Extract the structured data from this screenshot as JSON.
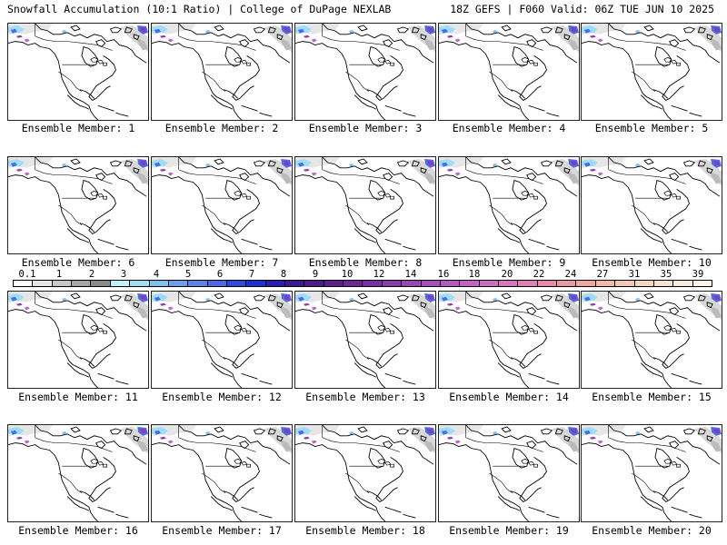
{
  "header": {
    "left_title": "Snowfall Accumulation (10:1 Ratio) | College of DuPage NEXLAB",
    "right_title": "18Z GEFS | F060 Valid: 06Z TUE JUN 10 2025"
  },
  "members": [
    {
      "label": "Ensemble Member: 1"
    },
    {
      "label": "Ensemble Member: 2"
    },
    {
      "label": "Ensemble Member: 3"
    },
    {
      "label": "Ensemble Member: 4"
    },
    {
      "label": "Ensemble Member: 5"
    },
    {
      "label": "Ensemble Member: 6"
    },
    {
      "label": "Ensemble Member: 7"
    },
    {
      "label": "Ensemble Member: 8"
    },
    {
      "label": "Ensemble Member: 9"
    },
    {
      "label": "Ensemble Member: 10"
    },
    {
      "label": "Ensemble Member: 11"
    },
    {
      "label": "Ensemble Member: 12"
    },
    {
      "label": "Ensemble Member: 13"
    },
    {
      "label": "Ensemble Member: 14"
    },
    {
      "label": "Ensemble Member: 15"
    },
    {
      "label": "Ensemble Member: 16"
    },
    {
      "label": "Ensemble Member: 17"
    },
    {
      "label": "Ensemble Member: 18"
    },
    {
      "label": "Ensemble Member: 19"
    },
    {
      "label": "Ensemble Member: 20"
    }
  ],
  "colorbar": {
    "labels": [
      "0.1",
      "1",
      "2",
      "3",
      "4",
      "5",
      "6",
      "7",
      "8",
      "9",
      "10",
      "12",
      "14",
      "16",
      "18",
      "20",
      "22",
      "24",
      "27",
      "31",
      "35",
      "39"
    ],
    "colors": [
      "#ffffff",
      "#e6e6e6",
      "#c8c8c8",
      "#a6a6a6",
      "#8a8a8a",
      "#bff3f7",
      "#9fdcf5",
      "#80bff0",
      "#6aa0ee",
      "#5a86ec",
      "#4a6ae8",
      "#2d4be0",
      "#1d2fd6",
      "#2a1fb4",
      "#3c1a96",
      "#4d1a8a",
      "#5c2090",
      "#6e289a",
      "#7d30a6",
      "#8c3ab0",
      "#9a44b8",
      "#a84ec0",
      "#b658c6",
      "#c462c8",
      "#cf6cc4",
      "#d876bc",
      "#e080b2",
      "#e68ca8",
      "#ea9aa0",
      "#efa8a0",
      "#f2b8a8",
      "#f5c8b4",
      "#f7d6c2",
      "#f9e2d0",
      "#fbece0",
      "#fdf4ec"
    ]
  }
}
